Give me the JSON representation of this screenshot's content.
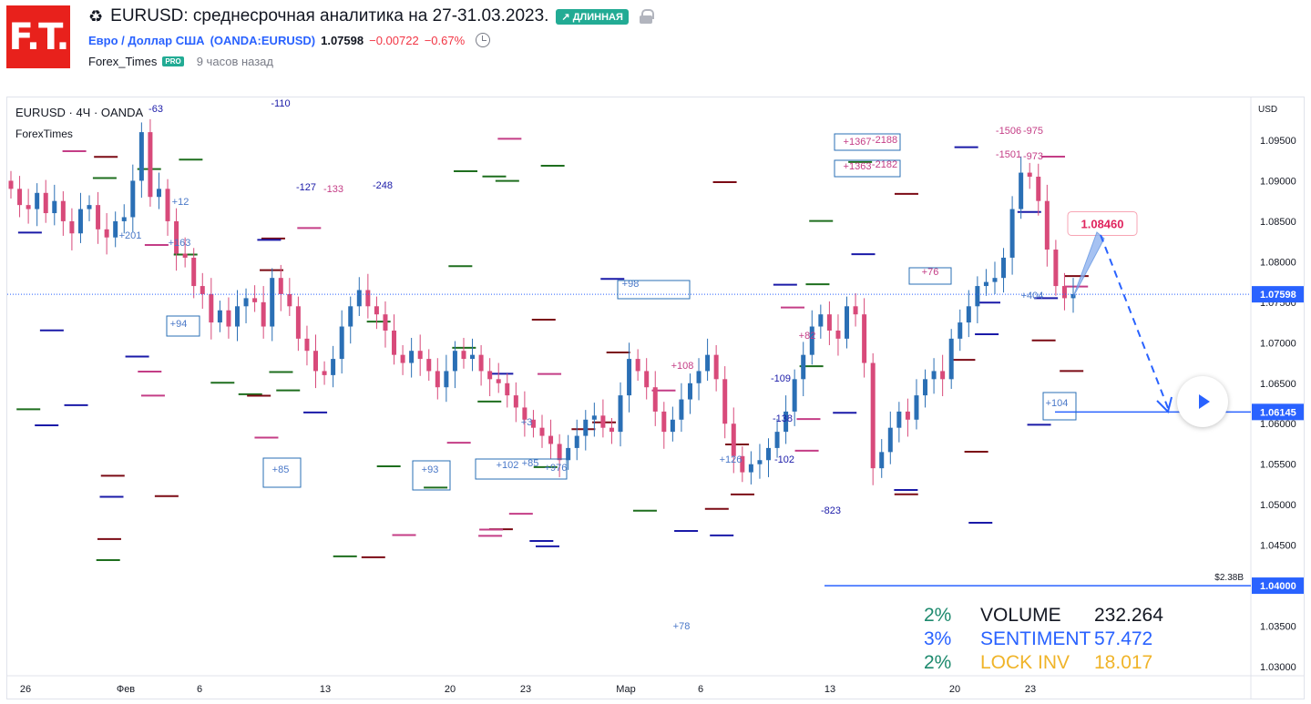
{
  "header": {
    "logo_text": "F.T.",
    "title": "EURUSD: среднесрочная аналитика на 27-31.03.2023.",
    "direction_badge": "↗ ДЛИННАЯ",
    "symbol_name": "Евро / Доллар США",
    "symbol_code": "(OANDA:EURUSD)",
    "price": "1.07598",
    "change": "−0.00722",
    "change_pct": "−0.67%",
    "author": "Forex_Times",
    "pro_badge": "PRO",
    "time_ago": "9 часов назад"
  },
  "legend": {
    "symbol_line": "EURUSD · 4Ч · OANDA",
    "indicator": "ForexTimes"
  },
  "stats": [
    {
      "pct": "2%",
      "label": "VOLUME",
      "value": "232.264",
      "color": "#131722",
      "pct_color": "#1e8a6e"
    },
    {
      "pct": "3%",
      "label": "SENTIMENT",
      "value": "57.472",
      "color": "#2962ff",
      "pct_color": "#2962ff"
    },
    {
      "pct": "2%",
      "label": "LOCK INV",
      "value": "18.017",
      "color": "#f0b429",
      "pct_color": "#1e8a6e"
    }
  ],
  "chart_data": {
    "type": "candlestick",
    "symbol": "EURUSD",
    "timeframe": "4Ч",
    "currency_label": "USD",
    "y_ticks": [
      "1.09500",
      "1.09000",
      "1.08500",
      "1.08000",
      "1.07500",
      "1.07000",
      "1.06500",
      "1.06000",
      "1.05500",
      "1.05000",
      "1.04500",
      "1.04000",
      "1.03500",
      "1.03000"
    ],
    "ylim": [
      1.029,
      1.1
    ],
    "x_ticks": [
      "26",
      "Фев",
      "6",
      "13",
      "20",
      "23",
      "Мар",
      "6",
      "13",
      "20",
      "23"
    ],
    "current_price_label": "1.07598",
    "target_label": "1.08460",
    "level_labels": [
      {
        "price": "1.06145",
        "color": "#2962ff"
      },
      {
        "price": "1.04000",
        "color": "#2962ff",
        "note": "$2.38B"
      }
    ],
    "close_path": [
      1.089,
      1.087,
      1.0865,
      1.0885,
      1.086,
      1.0875,
      1.085,
      1.0835,
      1.0865,
      1.087,
      1.084,
      1.083,
      1.085,
      1.0855,
      1.09,
      1.096,
      1.088,
      1.089,
      1.085,
      1.081,
      1.0805,
      1.077,
      1.076,
      1.0725,
      1.074,
      1.072,
      1.0745,
      1.0755,
      1.075,
      1.072,
      1.078,
      1.076,
      1.0745,
      1.0705,
      1.069,
      1.0665,
      1.066,
      1.068,
      1.072,
      1.0745,
      1.0765,
      1.0745,
      1.0735,
      1.0715,
      1.0685,
      1.0675,
      1.069,
      1.068,
      1.0665,
      1.0645,
      1.0665,
      1.069,
      1.068,
      1.0685,
      1.0665,
      1.0655,
      1.065,
      1.0635,
      1.062,
      1.0605,
      1.0595,
      1.0585,
      1.0575,
      1.0555,
      1.057,
      1.0585,
      1.0605,
      1.061,
      1.0595,
      1.059,
      1.0635,
      1.068,
      1.0665,
      1.0645,
      1.0615,
      1.059,
      1.0605,
      1.063,
      1.065,
      1.0665,
      1.0685,
      1.0655,
      1.06,
      1.056,
      1.054,
      1.055,
      1.0555,
      1.057,
      1.059,
      1.0615,
      1.0655,
      1.0685,
      1.072,
      1.0735,
      1.0715,
      1.0705,
      1.0745,
      1.0735,
      1.0675,
      1.0545,
      1.0565,
      1.0595,
      1.0615,
      1.0605,
      1.0635,
      1.0655,
      1.0665,
      1.0655,
      1.0705,
      1.0725,
      1.0745,
      1.077,
      1.0775,
      1.078,
      1.0805,
      1.0865,
      1.091,
      1.0905,
      1.0875,
      1.0815,
      1.077,
      1.0755,
      1.076
    ]
  },
  "annotations": [
    "-110",
    "-127",
    "-133",
    "-248",
    "+201",
    "+163",
    "+94",
    "+85",
    "+93",
    "+102",
    "+85",
    "+976",
    "+98",
    "+108",
    "+78",
    "-109",
    "-138",
    "+126",
    "-102",
    "-823",
    "+82",
    "+1367",
    "-2188",
    "+1363",
    "-2182",
    "+76",
    "-1506",
    "-975",
    "-1501",
    "-973",
    "+404",
    "+104",
    "+3",
    "+12",
    "-63"
  ]
}
